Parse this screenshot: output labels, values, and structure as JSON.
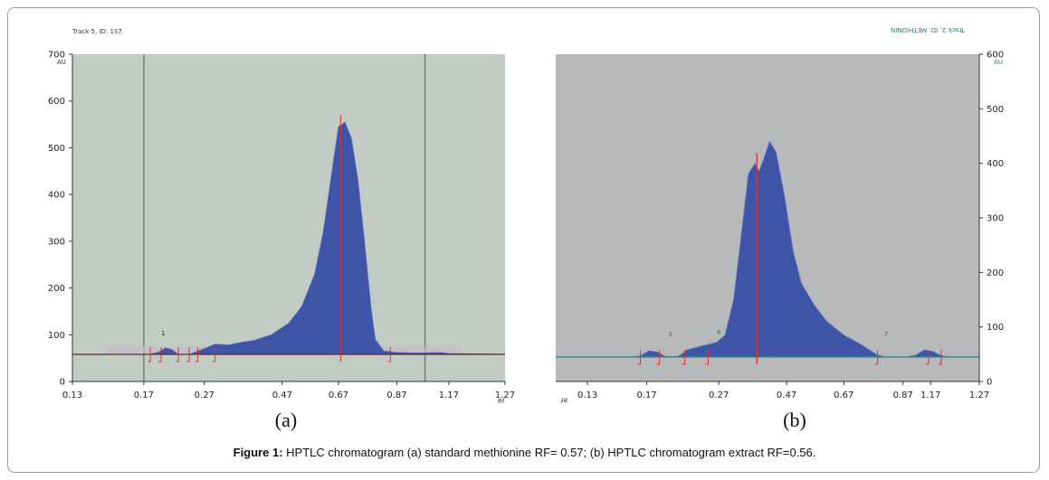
{
  "caption": {
    "prefix": "Figure 1:",
    "text": " HPTLC chromatogram (a) standard methionine RF= 0.57; (b) HPTLC chromatogram extract RF=0.56."
  },
  "chart_data": [
    {
      "type": "area",
      "panel_label": "(a)",
      "header_text": "Track 5, ID: 1S7",
      "y_axis_unit": "AU",
      "x_axis_unit": "Rf",
      "ylim": [
        0,
        700
      ],
      "y_ticks": [
        0,
        100,
        200,
        300,
        400,
        500,
        600,
        700
      ],
      "x_tick_labels": [
        "0.13",
        "0.17",
        "0.27",
        "0.47",
        "0.67",
        "0.87",
        "1.17",
        "1.27"
      ],
      "peak_labels": [
        "1"
      ],
      "colors": {
        "plot_bg": "#c3cbc5",
        "fill": "#3f54a6",
        "baseline": "#5a2f25",
        "marker": "#e03030"
      },
      "series": [
        {
          "values": [
            [
              0,
              58
            ],
            [
              0.18,
              58
            ],
            [
              0.2,
              63
            ],
            [
              0.215,
              72
            ],
            [
              0.23,
              68
            ],
            [
              0.245,
              58
            ],
            [
              0.27,
              58
            ],
            [
              0.29,
              65
            ],
            [
              0.31,
              72
            ],
            [
              0.33,
              80
            ],
            [
              0.36,
              78
            ],
            [
              0.38,
              82
            ],
            [
              0.42,
              88
            ],
            [
              0.46,
              100
            ],
            [
              0.5,
              125
            ],
            [
              0.53,
              160
            ],
            [
              0.56,
              230
            ],
            [
              0.58,
              320
            ],
            [
              0.6,
              450
            ],
            [
              0.615,
              545
            ],
            [
              0.63,
              555
            ],
            [
              0.645,
              520
            ],
            [
              0.66,
              430
            ],
            [
              0.675,
              300
            ],
            [
              0.69,
              160
            ],
            [
              0.7,
              90
            ],
            [
              0.72,
              65
            ],
            [
              0.75,
              62
            ],
            [
              0.8,
              61
            ],
            [
              0.85,
              62
            ],
            [
              0.87,
              60
            ],
            [
              1.0,
              58
            ]
          ]
        }
      ],
      "integration_markers": [
        0.18,
        0.205,
        0.245,
        0.27,
        0.29,
        0.33,
        0.735
      ],
      "peak_marker": 0.62
    },
    {
      "type": "area",
      "panel_label": "(b)",
      "header_text": "Track 2, ID: METHIONIN",
      "y_axis_unit": "AU",
      "x_axis_unit": "Rf",
      "ylim": [
        0,
        600
      ],
      "y_ticks": [
        0,
        100,
        200,
        300,
        400,
        500,
        600
      ],
      "x_tick_labels": [
        "0.13",
        "0.17",
        "0.27",
        "0.47",
        "0.67",
        "0.87",
        "1.17",
        "1.27"
      ],
      "peak_labels": [
        "3",
        "6",
        "7"
      ],
      "colors": {
        "plot_bg": "#b7b9bb",
        "fill": "#3f54a6",
        "baseline": "#2b8080",
        "marker": "#e03030"
      },
      "series": [
        {
          "values": [
            [
              0,
              45
            ],
            [
              0.18,
              45
            ],
            [
              0.2,
              47
            ],
            [
              0.22,
              56
            ],
            [
              0.24,
              54
            ],
            [
              0.26,
              45
            ],
            [
              0.29,
              46
            ],
            [
              0.31,
              58
            ],
            [
              0.33,
              62
            ],
            [
              0.36,
              68
            ],
            [
              0.38,
              72
            ],
            [
              0.4,
              85
            ],
            [
              0.42,
              150
            ],
            [
              0.44,
              280
            ],
            [
              0.455,
              380
            ],
            [
              0.47,
              400
            ],
            [
              0.48,
              385
            ],
            [
              0.49,
              405
            ],
            [
              0.505,
              440
            ],
            [
              0.52,
              420
            ],
            [
              0.54,
              340
            ],
            [
              0.56,
              240
            ],
            [
              0.58,
              180
            ],
            [
              0.61,
              140
            ],
            [
              0.64,
              110
            ],
            [
              0.68,
              85
            ],
            [
              0.72,
              68
            ],
            [
              0.74,
              58
            ],
            [
              0.76,
              48
            ],
            [
              0.78,
              45
            ],
            [
              0.83,
              45
            ],
            [
              0.85,
              48
            ],
            [
              0.87,
              58
            ],
            [
              0.89,
              55
            ],
            [
              0.91,
              47
            ],
            [
              0.93,
              45
            ],
            [
              1.0,
              45
            ]
          ]
        }
      ],
      "integration_markers": [
        0.2,
        0.245,
        0.305,
        0.36,
        0.76,
        0.88,
        0.91
      ],
      "peak_marker": 0.475
    }
  ]
}
